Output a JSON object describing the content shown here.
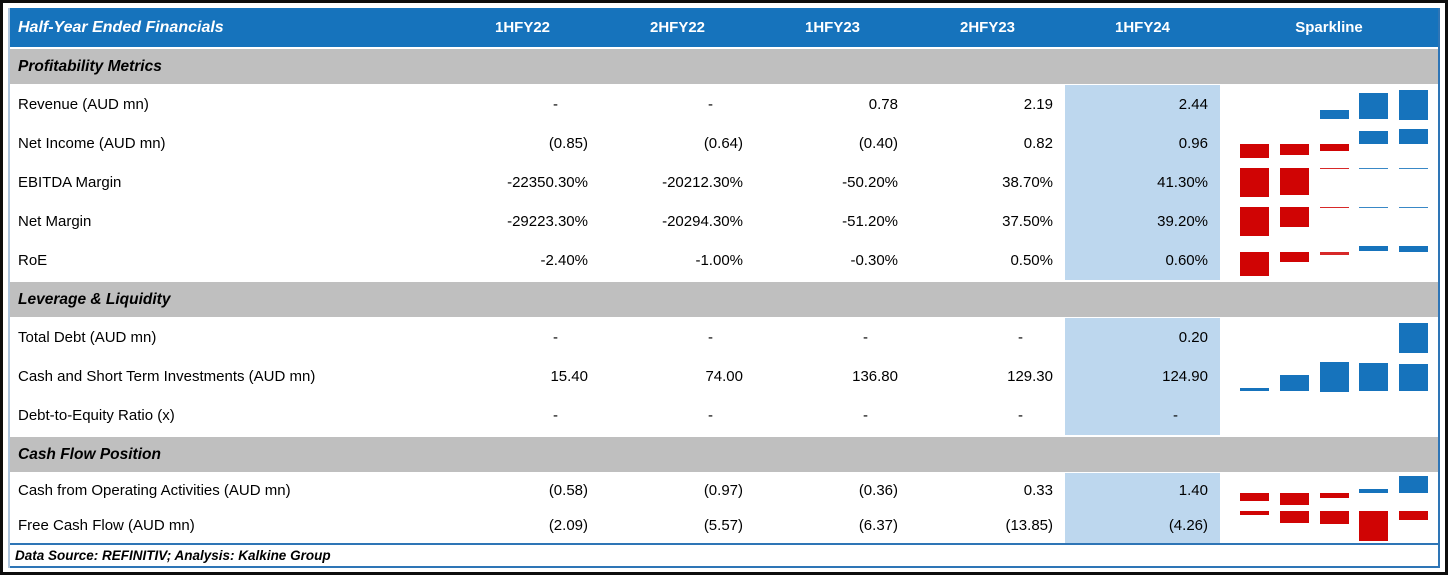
{
  "table": {
    "title": "Half-Year Ended Financials",
    "columns": [
      "1HFY22",
      "2HFY22",
      "1HFY23",
      "2HFY23",
      "1HFY24"
    ],
    "sparkline_header": "Sparkline",
    "highlighted_column": "1HFY24",
    "sections": [
      {
        "label": "Profitability Metrics",
        "rows": [
          {
            "label": "Revenue (AUD mn)",
            "values": [
              "-",
              "-",
              "0.78",
              "2.19",
              "2.44"
            ],
            "spark": [
              null,
              null,
              0.78,
              2.19,
              2.44
            ]
          },
          {
            "label": "Net Income (AUD mn)",
            "values": [
              "(0.85)",
              "(0.64)",
              "(0.40)",
              "0.82",
              "0.96"
            ],
            "spark": [
              -0.85,
              -0.64,
              -0.4,
              0.82,
              0.96
            ]
          },
          {
            "label": "EBITDA Margin",
            "values": [
              "-22350.30%",
              "-20212.30%",
              "-50.20%",
              "38.70%",
              "41.30%"
            ],
            "spark": [
              -22350.3,
              -20212.3,
              -50.2,
              38.7,
              41.3
            ]
          },
          {
            "label": "Net Margin",
            "values": [
              "-29223.30%",
              "-20294.30%",
              "-51.20%",
              "37.50%",
              "39.20%"
            ],
            "spark": [
              -29223.3,
              -20294.3,
              -51.2,
              37.5,
              39.2
            ]
          },
          {
            "label": "RoE",
            "values": [
              "-2.40%",
              "-1.00%",
              "-0.30%",
              "0.50%",
              "0.60%"
            ],
            "spark": [
              -2.4,
              -1.0,
              -0.3,
              0.5,
              0.6
            ]
          }
        ]
      },
      {
        "label": "Leverage & Liquidity",
        "rows": [
          {
            "label": "Total Debt (AUD mn)",
            "values": [
              "-",
              "-",
              "-",
              "-",
              "0.20"
            ],
            "spark": [
              null,
              null,
              null,
              null,
              0.2
            ]
          },
          {
            "label": "Cash and Short Term Investments (AUD mn)",
            "values": [
              "15.40",
              "74.00",
              "136.80",
              "129.30",
              "124.90"
            ],
            "spark": [
              15.4,
              74.0,
              136.8,
              129.3,
              124.9
            ]
          },
          {
            "label": "Debt-to-Equity Ratio (x)",
            "values": [
              "-",
              "-",
              "-",
              "-",
              "-"
            ],
            "spark": [
              null,
              null,
              null,
              null,
              null
            ]
          }
        ]
      },
      {
        "label": "Cash Flow Position",
        "rows": [
          {
            "label": "Cash from Operating Activities (AUD mn)",
            "values": [
              "(0.58)",
              "(0.97)",
              "(0.36)",
              "0.33",
              "1.40"
            ],
            "spark": [
              -0.58,
              -0.97,
              -0.36,
              0.33,
              1.4
            ]
          },
          {
            "label": "Free Cash Flow (AUD mn)",
            "values": [
              "(2.09)",
              "(5.57)",
              "(6.37)",
              "(13.85)",
              "(4.26)"
            ],
            "spark": [
              -2.09,
              -5.57,
              -6.37,
              -13.85,
              -4.26
            ]
          }
        ]
      }
    ],
    "footer_note": "Data Source: REFINITIV; Analysis: Kalkine Group"
  },
  "colors": {
    "header_blue": "#1673BC",
    "section_gray": "#BFBFBF",
    "highlight_blue": "#BDD7EE",
    "spark_positive": "#1673BC",
    "spark_negative": "#D00404",
    "table_border_blue": "#2E75B6"
  }
}
